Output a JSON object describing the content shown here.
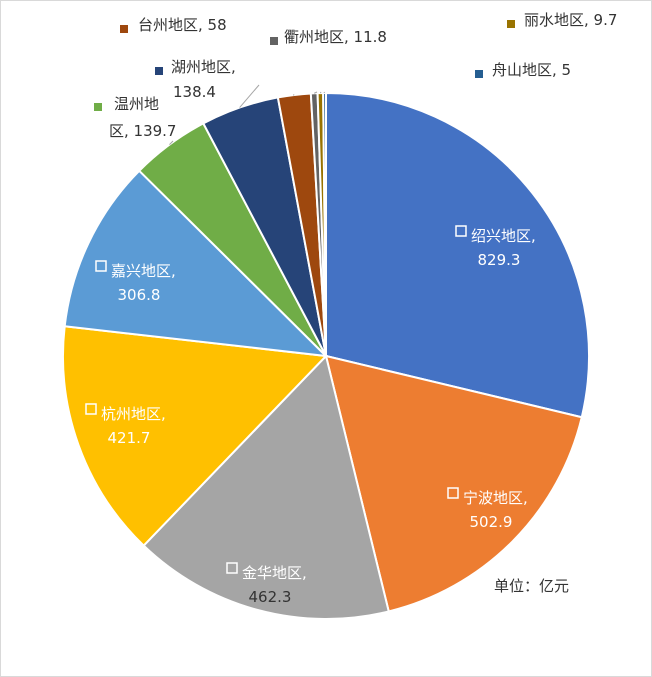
{
  "chart_data": {
    "type": "pie",
    "title": "",
    "unit_note": "单位：亿元",
    "series": [
      {
        "name": "绍兴地区",
        "value": 829.3,
        "value_label": "829.3",
        "color": "#4472C4"
      },
      {
        "name": "宁波地区",
        "value": 502.9,
        "value_label": "502.9",
        "color": "#ED7D31"
      },
      {
        "name": "金华地区",
        "value": 462.3,
        "value_label": "462.3",
        "color": "#A5A5A5"
      },
      {
        "name": "杭州地区",
        "value": 421.7,
        "value_label": "421.7",
        "color": "#FFC000"
      },
      {
        "name": "嘉兴地区",
        "value": 306.8,
        "value_label": "306.8",
        "color": "#5B9BD5"
      },
      {
        "name": "温州地区",
        "value": 139.7,
        "value_label": "139.7",
        "color": "#70AD47"
      },
      {
        "name": "湖州地区",
        "value": 138.4,
        "value_label": "138.4",
        "color": "#264478"
      },
      {
        "name": "台州地区",
        "value": 58,
        "value_label": "58",
        "color": "#9E480E"
      },
      {
        "name": "衢州地区",
        "value": 11.8,
        "value_label": "11.8",
        "color": "#636363"
      },
      {
        "name": "丽水地区",
        "value": 9.7,
        "value_label": "9.7",
        "color": "#997300"
      },
      {
        "name": "舟山地区",
        "value": 5,
        "value_label": "5",
        "color": "#255E91"
      }
    ]
  }
}
